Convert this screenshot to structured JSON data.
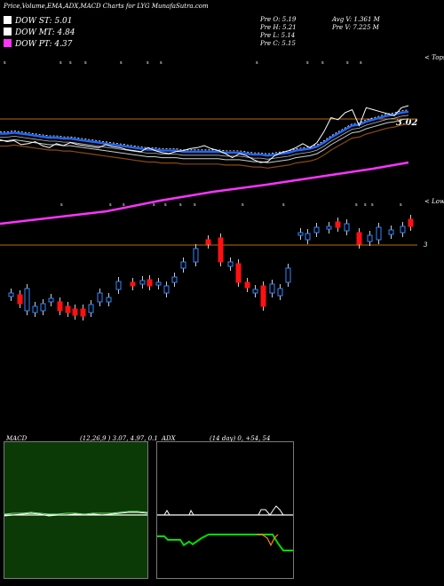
{
  "header": {
    "title": "Price,Volume,EMA,ADX,MACD Charts for LYG MunafaSutra.com"
  },
  "legend": [
    {
      "label": "DOW ST: 5.01",
      "color": "#ffffff"
    },
    {
      "label": "DOW MT: 4.84",
      "color": "#ffffff"
    },
    {
      "label": "DOW PT: 4.37",
      "color": "#ff33ff"
    }
  ],
  "stats": {
    "prev_open": "Pre   O: 5.19",
    "prev_high": "Pre   H: 5.21",
    "prev_low": "Pre   L: 5.14",
    "prev_close": "Pre   C: 5.15",
    "avg_volume": "Avg V: 1.361 M",
    "prev_volume": "Pre   V: 7.225 M"
  },
  "labels": {
    "tops": "< Tops",
    "lows": "< Lows",
    "ema_value": "3.02",
    "price_level": "3"
  },
  "colors": {
    "background": "#000000",
    "up_candle": "#3388ff",
    "down_candle": "#ff1111",
    "ema_fast": "#2266ff",
    "dow_pt": "#ff33ff",
    "level_line": "#b86a14",
    "macd_panel_bg": "#0c3a06",
    "adx_line_green": "#00dd00",
    "adx_line_orange": "#ff8800"
  },
  "chart_data": [
    {
      "type": "line",
      "title": "Price (EMA bands)",
      "series": [
        {
          "name": "",
          "values": [
            38,
            36,
            37,
            33,
            34,
            36,
            32,
            30,
            34,
            32,
            35,
            33,
            32,
            31,
            30,
            33,
            31,
            30,
            28,
            27,
            26,
            30,
            27,
            25,
            24,
            26,
            27,
            29,
            30,
            32,
            29,
            27,
            24,
            20,
            24,
            22,
            18,
            15,
            16,
            22,
            25,
            27,
            30,
            34,
            30,
            35,
            46,
            60,
            58,
            65,
            68,
            52,
            70,
            68,
            66,
            64,
            62,
            70,
            72
          ]
        },
        {
          "name": "",
          "values": [
            44,
            44,
            45,
            44,
            43,
            42,
            41,
            40,
            40,
            39,
            39,
            38,
            37,
            36,
            35,
            34,
            33,
            32,
            31,
            30,
            29,
            28,
            28,
            27,
            27,
            27,
            26,
            26,
            26,
            26,
            26,
            26,
            25,
            25,
            25,
            24,
            23,
            23,
            22,
            23,
            24,
            25,
            27,
            28,
            29,
            31,
            35,
            40,
            44,
            48,
            52,
            53,
            56,
            58,
            60,
            62,
            63,
            65,
            66
          ]
        }
      ]
    },
    {
      "type": "bar",
      "title": "MACD",
      "params": "(12,26,9 ) 3.07, 4.97, 0.1"
    },
    {
      "type": "line",
      "title": "ADX",
      "params": "(14 day) 0, +54, 54"
    }
  ]
}
